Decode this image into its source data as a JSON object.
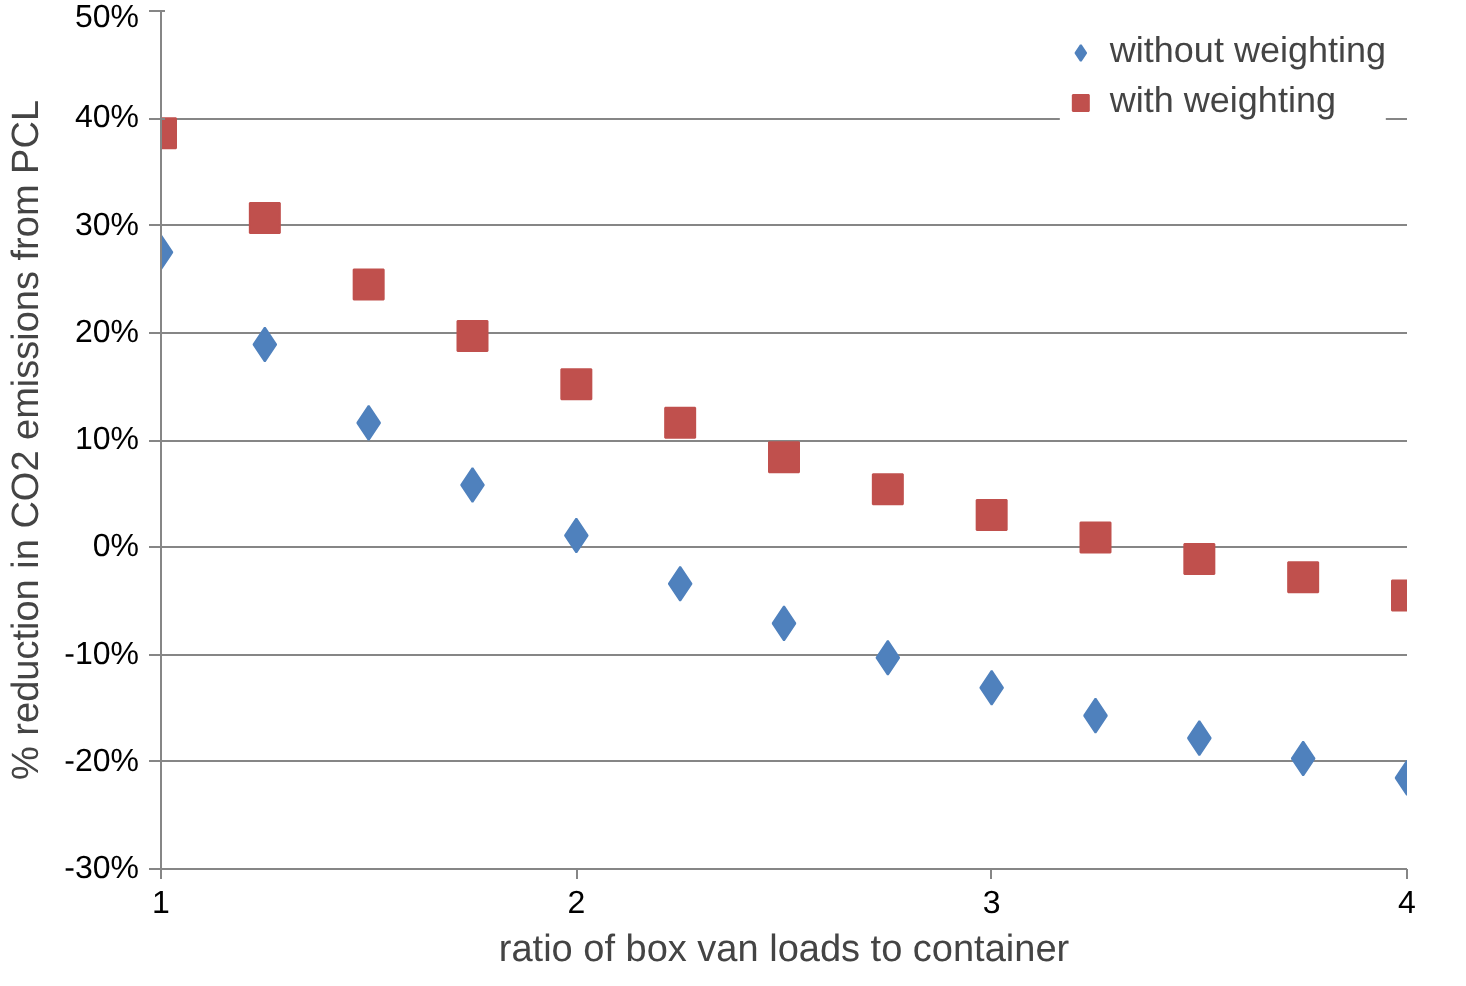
{
  "chart_data": {
    "type": "scatter",
    "xlabel": "ratio of box van loads to container",
    "ylabel": "% reduction in CO2 emissions from PCL",
    "x": [
      1,
      1.25,
      1.5,
      1.75,
      2,
      2.25,
      2.5,
      2.75,
      3,
      3.25,
      3.5,
      3.75,
      4
    ],
    "series": [
      {
        "name": "without weighting",
        "color": "#4f81bd",
        "marker": "diamond",
        "values": [
          27.5,
          18.9,
          11.6,
          5.8,
          1.1,
          -3.4,
          -7.1,
          -10.3,
          -13.1,
          -15.7,
          -17.8,
          -19.7,
          -21.5
        ]
      },
      {
        "name": "with weighting",
        "color": "#c0504d",
        "marker": "square",
        "values": [
          38.6,
          30.7,
          24.5,
          19.7,
          15.2,
          11.6,
          8.4,
          5.4,
          3.0,
          0.9,
          -1.1,
          -2.8,
          -4.5
        ]
      }
    ],
    "xlim": [
      1,
      4
    ],
    "xticks": [
      1,
      2,
      3,
      4
    ],
    "ylim": [
      -30,
      50
    ],
    "yticks": [
      {
        "value": -30,
        "label": "-30%"
      },
      {
        "value": -20,
        "label": "-20%"
      },
      {
        "value": -10,
        "label": "-10%"
      },
      {
        "value": 0,
        "label": "0%"
      },
      {
        "value": 10,
        "label": "10%"
      },
      {
        "value": 20,
        "label": "20%"
      },
      {
        "value": 30,
        "label": "30%"
      },
      {
        "value": 40,
        "label": "40%"
      },
      {
        "value": 50,
        "label": "50%"
      }
    ],
    "grid": "y",
    "legend": "top right"
  }
}
